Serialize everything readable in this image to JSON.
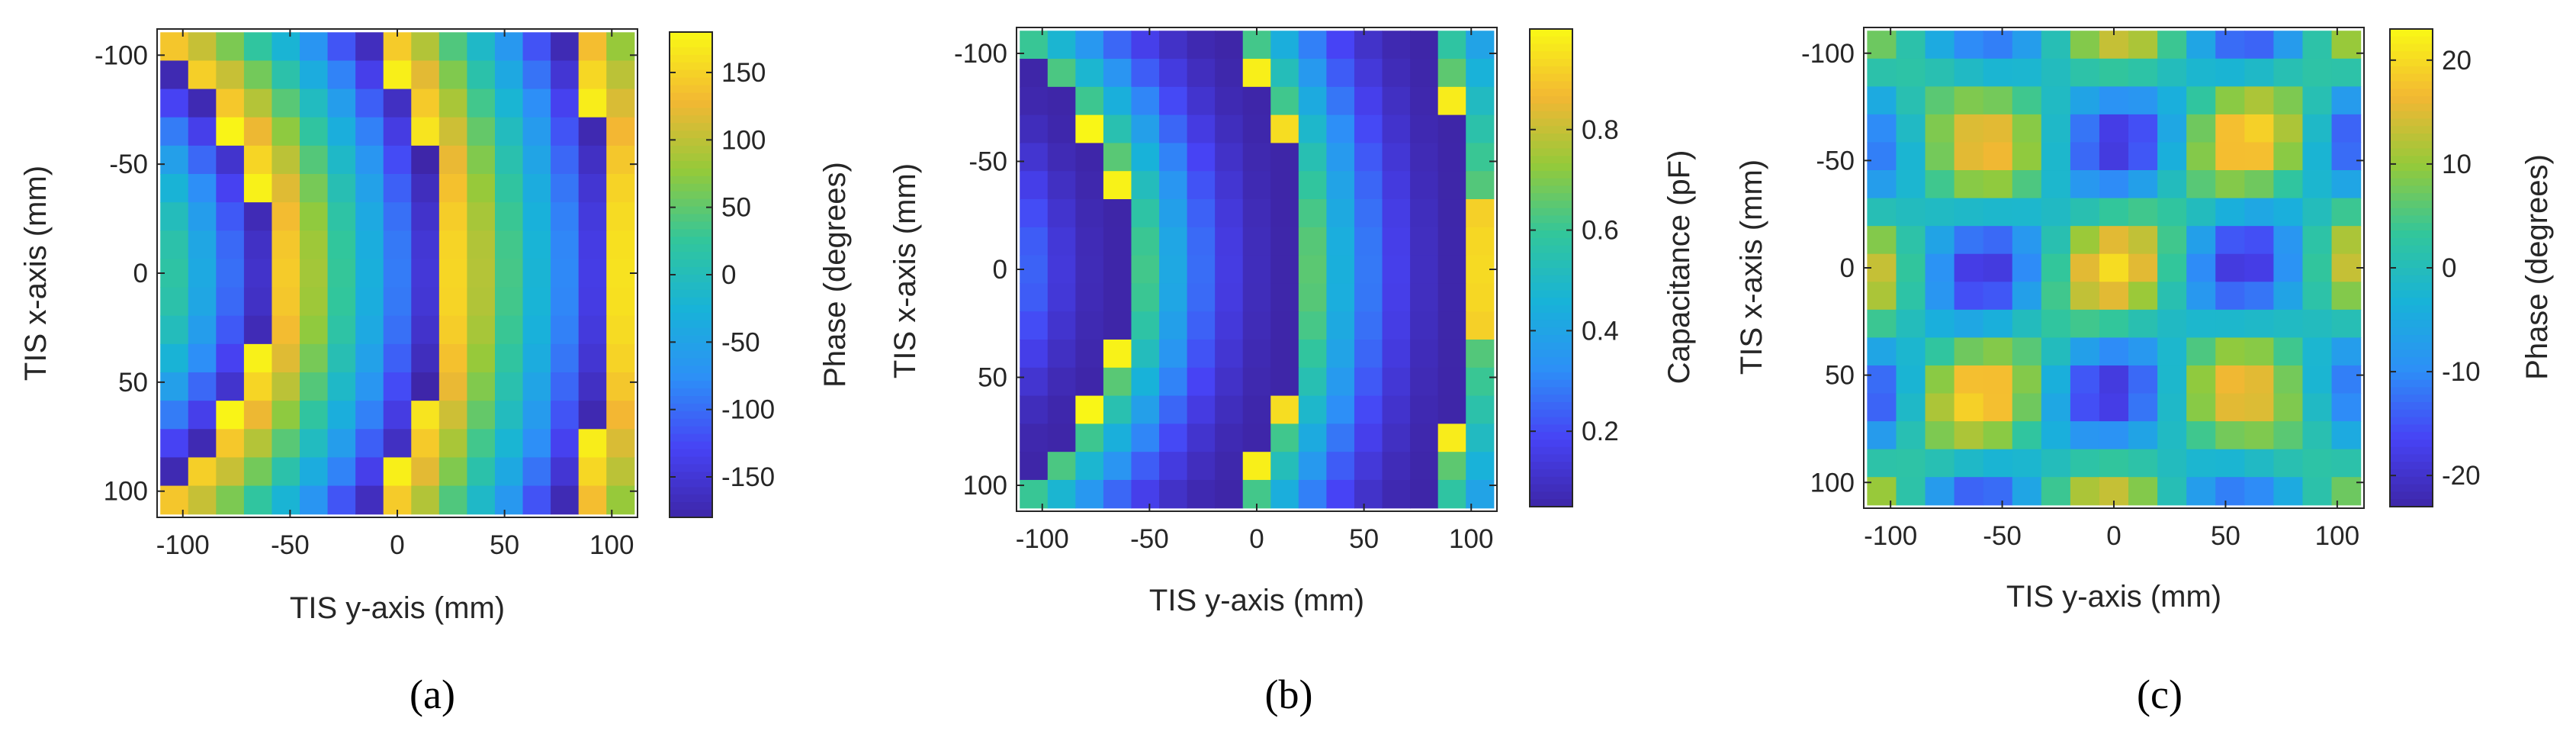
{
  "colormap": [
    "#3e26a8",
    "#4743f5",
    "#2d8ff7",
    "#18b3d8",
    "#32c69b",
    "#94ca3a",
    "#f3b733",
    "#f9f915"
  ],
  "chart_data": [
    {
      "type": "heatmap",
      "caption": "(a)",
      "xlabel": "TIS y-axis (mm)",
      "ylabel": "TIS x-axis (mm)",
      "xticks": [
        "-100",
        "-50",
        "0",
        "50",
        "100"
      ],
      "yticks": [
        "-100",
        "-50",
        "0",
        "50",
        "100"
      ],
      "xtick_values": [
        -100,
        -50,
        0,
        50,
        100
      ],
      "ytick_values": [
        -100,
        -50,
        0,
        50,
        100
      ],
      "xlim": [
        -112,
        112
      ],
      "ylim": [
        -112,
        112
      ],
      "colorbar_label": "Phase (degrees)",
      "colorbar_ticks": [
        "150",
        "100",
        "50",
        "0",
        "-50",
        "-100",
        "-150"
      ],
      "colorbar_tick_values": [
        150,
        100,
        50,
        0,
        -50,
        -100,
        -150
      ],
      "clim": [
        -180,
        180
      ],
      "pattern": "ring",
      "center_x": -180,
      "period": 80,
      "x_values": [
        -104,
        -91,
        -78,
        -65,
        -52,
        -39,
        -26,
        -13,
        0,
        13,
        26,
        39,
        52,
        65,
        78,
        91,
        104
      ],
      "y_values": [
        -104,
        -91,
        -78,
        -65,
        -52,
        -39,
        -26,
        -13,
        0,
        13,
        26,
        39,
        52,
        65,
        78,
        91,
        104
      ]
    },
    {
      "type": "heatmap",
      "caption": "(b)",
      "xlabel": "TIS y-axis (mm)",
      "ylabel": "TIS x-axis (mm)",
      "xticks": [
        "-100",
        "-50",
        "0",
        "50",
        "100"
      ],
      "yticks": [
        "-100",
        "-50",
        "0",
        "50",
        "100"
      ],
      "xtick_values": [
        -100,
        -50,
        0,
        50,
        100
      ],
      "ytick_values": [
        -100,
        -50,
        0,
        50,
        100
      ],
      "xlim": [
        -112,
        112
      ],
      "ylim": [
        -112,
        112
      ],
      "colorbar_label": "Capacitance (pF)",
      "colorbar_ticks": [
        "0.8",
        "0.6",
        "0.4",
        "0.2"
      ],
      "colorbar_tick_values": [
        0.8,
        0.6,
        0.4,
        0.2
      ],
      "clim": [
        0.05,
        1.0
      ],
      "pattern": "ring_capacitance",
      "center_x": -180,
      "period": 80,
      "x_values": [
        -104,
        -91,
        -78,
        -65,
        -52,
        -39,
        -26,
        -13,
        0,
        13,
        26,
        39,
        52,
        65,
        78,
        91,
        104
      ],
      "y_values": [
        -104,
        -91,
        -78,
        -65,
        -52,
        -39,
        -26,
        -13,
        0,
        13,
        26,
        39,
        52,
        65,
        78,
        91,
        104
      ]
    },
    {
      "type": "heatmap",
      "caption": "(c)",
      "xlabel": "TIS y-axis (mm)",
      "ylabel": "TIS x-axis (mm)",
      "xticks": [
        "-100",
        "-50",
        "0",
        "50",
        "100"
      ],
      "yticks": [
        "-100",
        "-50",
        "0",
        "50",
        "100"
      ],
      "xtick_values": [
        -100,
        -50,
        0,
        50,
        100
      ],
      "ytick_values": [
        -100,
        -50,
        0,
        50,
        100
      ],
      "xlim": [
        -112,
        112
      ],
      "ylim": [
        -112,
        112
      ],
      "colorbar_label": "Phase (degrees)",
      "colorbar_ticks": [
        "20",
        "10",
        "0",
        "-10",
        "-20"
      ],
      "colorbar_tick_values": [
        20,
        10,
        0,
        -10,
        -20
      ],
      "clim": [
        -23,
        23
      ],
      "pattern": "checker",
      "x_values": [
        -104,
        -91,
        -78,
        -65,
        -52,
        -39,
        -26,
        -13,
        0,
        13,
        26,
        39,
        52,
        65,
        78,
        91,
        104
      ],
      "y_values": [
        -104,
        -91,
        -78,
        -65,
        -52,
        -39,
        -26,
        -13,
        0,
        13,
        26,
        39,
        52,
        65,
        78,
        91,
        104
      ]
    }
  ]
}
